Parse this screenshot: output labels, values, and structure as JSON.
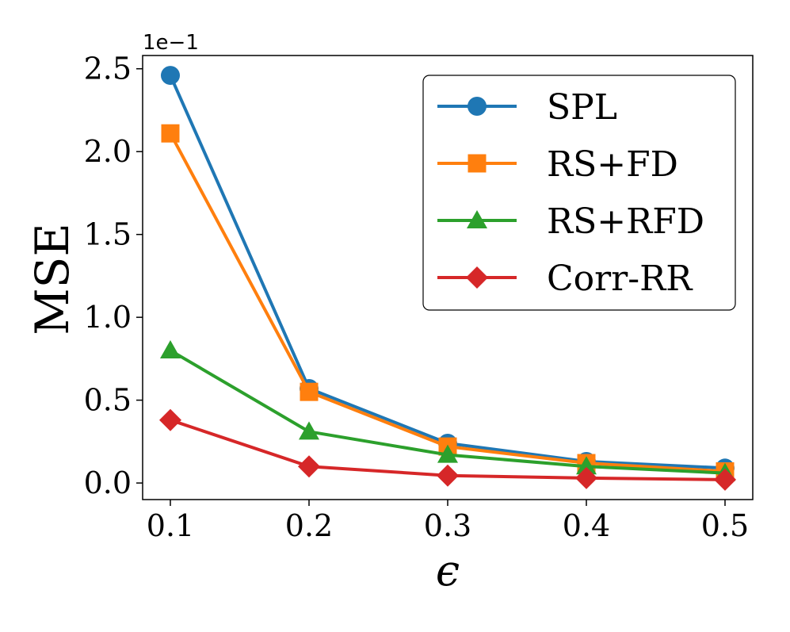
{
  "chart_data": {
    "type": "line",
    "title": "",
    "xlabel": "ϵ",
    "ylabel": "MSE",
    "y_offset_label": "1e−1",
    "x": [
      0.1,
      0.2,
      0.3,
      0.4,
      0.5
    ],
    "x_tick_labels": [
      "0.1",
      "0.2",
      "0.3",
      "0.4",
      "0.5"
    ],
    "y_ticks": [
      0.0,
      0.5,
      1.0,
      1.5,
      2.0,
      2.5
    ],
    "y_tick_labels": [
      "0.0",
      "0.5",
      "1.0",
      "1.5",
      "2.0",
      "2.5"
    ],
    "xlim": [
      0.08,
      0.52
    ],
    "ylim": [
      -0.1,
      2.58
    ],
    "grid": false,
    "legend_position": "top-right",
    "series": [
      {
        "name": "SPL",
        "color": "#1f77b4",
        "marker": "circle",
        "values": [
          2.46,
          0.57,
          0.24,
          0.13,
          0.09
        ]
      },
      {
        "name": "RS+FD",
        "color": "#ff7f0e",
        "marker": "square",
        "values": [
          2.11,
          0.55,
          0.22,
          0.12,
          0.07
        ]
      },
      {
        "name": "RS+RFD",
        "color": "#2ca02c",
        "marker": "triangle",
        "values": [
          0.8,
          0.31,
          0.17,
          0.1,
          0.06
        ]
      },
      {
        "name": "Corr-RR",
        "color": "#d62728",
        "marker": "diamond",
        "values": [
          0.38,
          0.1,
          0.045,
          0.03,
          0.02
        ]
      }
    ]
  }
}
